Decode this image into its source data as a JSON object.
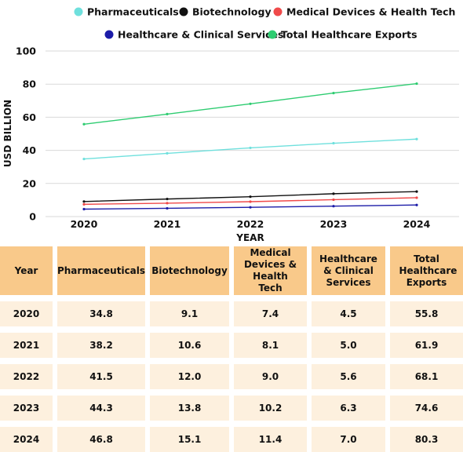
{
  "chart_data": {
    "type": "line",
    "x": [
      2020,
      2021,
      2022,
      2023,
      2024
    ],
    "xlabel": "YEAR",
    "ylabel": "USD BILLION",
    "ylim": [
      0,
      100
    ],
    "yticks": [
      0,
      20,
      40,
      60,
      80,
      100
    ],
    "grid": true,
    "legend_placement": "top",
    "series": [
      {
        "name": "Pharmaceuticals",
        "color": "#6fe0dd",
        "values": [
          34.8,
          38.2,
          41.5,
          44.3,
          46.8
        ]
      },
      {
        "name": "Biotechnology",
        "color": "#111111",
        "values": [
          9.1,
          10.6,
          12.0,
          13.8,
          15.1
        ]
      },
      {
        "name": "Medical Devices & Health Tech",
        "color": "#f04a4a",
        "values": [
          7.4,
          8.1,
          9.0,
          10.2,
          11.4
        ]
      },
      {
        "name": "Healthcare & Clinical Services",
        "color": "#1c1ca8",
        "values": [
          4.5,
          5.0,
          5.6,
          6.3,
          7.0
        ]
      },
      {
        "name": "Total Healthcare Exports",
        "color": "#2ecc71",
        "values": [
          55.8,
          61.9,
          68.1,
          74.6,
          80.3
        ]
      }
    ]
  },
  "table": {
    "headers": [
      "Year",
      "Pharmaceuticals",
      "Biotechnology",
      "Medical Devices & Health Tech",
      "Healthcare & Clinical Services",
      "Total Healthcare Exports"
    ],
    "rows": [
      [
        "2020",
        "34.8",
        "9.1",
        "7.4",
        "4.5",
        "55.8"
      ],
      [
        "2021",
        "38.2",
        "10.6",
        "8.1",
        "5.0",
        "61.9"
      ],
      [
        "2022",
        "41.5",
        "12.0",
        "9.0",
        "5.6",
        "68.1"
      ],
      [
        "2023",
        "44.3",
        "13.8",
        "10.2",
        "6.3",
        "74.6"
      ],
      [
        "2024",
        "46.8",
        "15.1",
        "11.4",
        "7.0",
        "80.3"
      ]
    ]
  },
  "colors": {
    "header_bg": "#f9c98a",
    "cell_bg": "#fdf0de",
    "grid": "#d9d9d9"
  }
}
